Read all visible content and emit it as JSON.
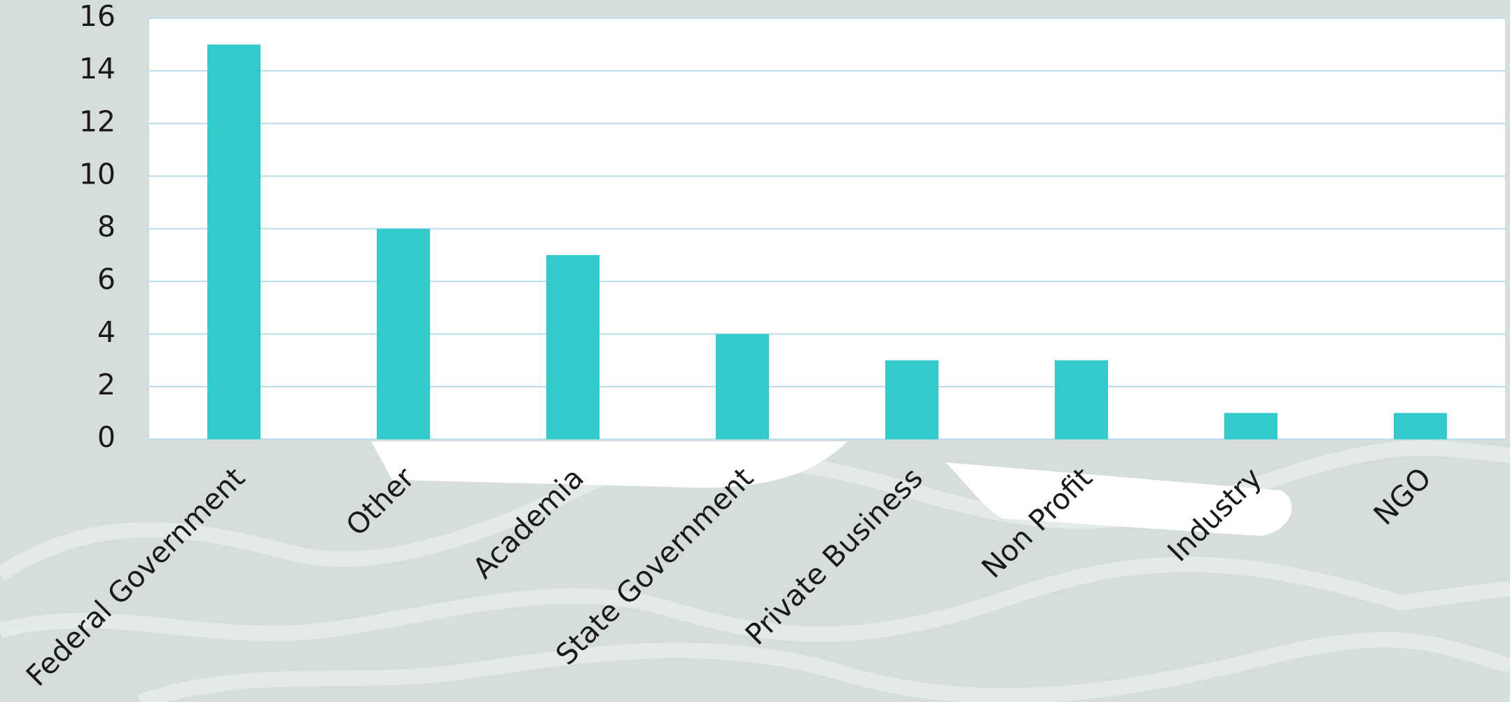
{
  "chart_data": {
    "type": "bar",
    "categories": [
      "Federal Government",
      "Other",
      "Academia",
      "State Government",
      "Private Business",
      "Non Profit",
      "Industry",
      "NGO"
    ],
    "values": [
      15,
      8,
      7,
      4,
      3,
      3,
      1,
      1
    ],
    "color": "#33cacc",
    "ylim": [
      0,
      16
    ],
    "yticks": [
      0,
      2,
      4,
      6,
      8,
      10,
      12,
      14,
      16
    ],
    "grid": true
  }
}
